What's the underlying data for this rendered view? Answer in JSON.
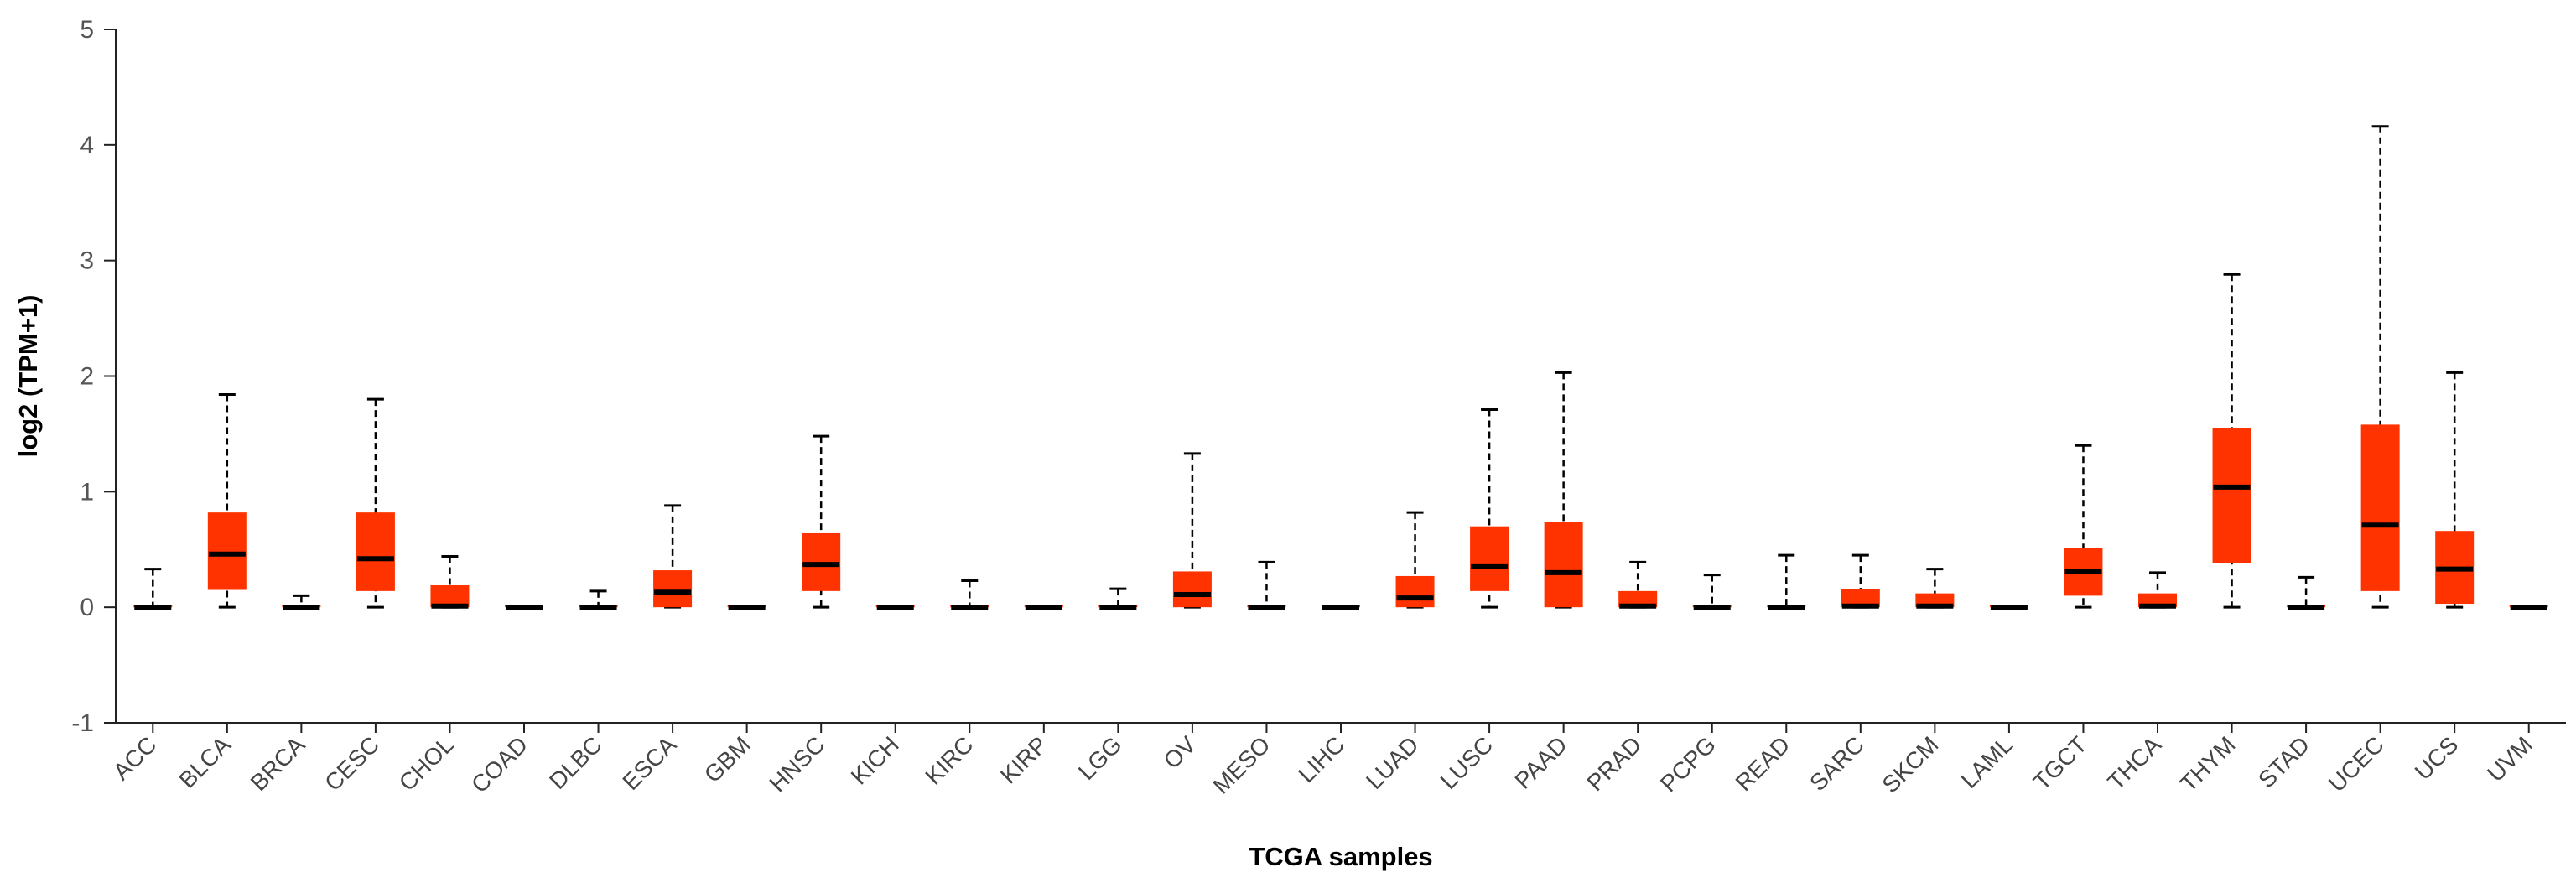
{
  "chart_data": {
    "type": "boxplot",
    "title": "",
    "xlabel": "TCGA samples",
    "ylabel": "log2 (TPM+1)",
    "ylim": [
      -1,
      5
    ],
    "yticks": [
      "5",
      "4",
      "3",
      "2",
      "1",
      "0",
      "-1"
    ],
    "box_color": "#FF3300",
    "categories": [
      "ACC",
      "BLCA",
      "BRCA",
      "CESC",
      "CHOL",
      "COAD",
      "DLBC",
      "ESCA",
      "GBM",
      "HNSC",
      "KICH",
      "KIRC",
      "KIRP",
      "LGG",
      "OV",
      "MESO",
      "LIHC",
      "LUAD",
      "LUSC",
      "PAAD",
      "PRAD",
      "PCPG",
      "READ",
      "SARC",
      "SKCM",
      "LAML",
      "TGCT",
      "THCA",
      "THYM",
      "STAD",
      "UCEC",
      "UCS",
      "UVM"
    ],
    "series": [
      {
        "name": "ACC",
        "min": 0,
        "q1": 0,
        "median": 0,
        "q3": 0.02,
        "max": 0.33
      },
      {
        "name": "BLCA",
        "min": 0,
        "q1": 0.15,
        "median": 0.46,
        "q3": 0.82,
        "max": 1.84
      },
      {
        "name": "BRCA",
        "min": 0,
        "q1": 0,
        "median": 0,
        "q3": 0.02,
        "max": 0.1
      },
      {
        "name": "CESC",
        "min": 0,
        "q1": 0.14,
        "median": 0.42,
        "q3": 0.82,
        "max": 1.8
      },
      {
        "name": "CHOL",
        "min": 0,
        "q1": 0,
        "median": 0.01,
        "q3": 0.19,
        "max": 0.44
      },
      {
        "name": "COAD",
        "min": 0,
        "q1": 0,
        "median": 0,
        "q3": 0.01,
        "max": 0.01
      },
      {
        "name": "DLBC",
        "min": 0,
        "q1": 0,
        "median": 0,
        "q3": 0.02,
        "max": 0.14
      },
      {
        "name": "ESCA",
        "min": 0,
        "q1": 0,
        "median": 0.13,
        "q3": 0.32,
        "max": 0.88
      },
      {
        "name": "GBM",
        "min": 0,
        "q1": 0,
        "median": 0,
        "q3": 0.01,
        "max": 0.01
      },
      {
        "name": "HNSC",
        "min": 0,
        "q1": 0.14,
        "median": 0.37,
        "q3": 0.64,
        "max": 1.48
      },
      {
        "name": "KICH",
        "min": 0,
        "q1": 0,
        "median": 0,
        "q3": 0.01,
        "max": 0.01
      },
      {
        "name": "KIRC",
        "min": 0,
        "q1": 0,
        "median": 0,
        "q3": 0.02,
        "max": 0.23
      },
      {
        "name": "KIRP",
        "min": 0,
        "q1": 0,
        "median": 0,
        "q3": 0.01,
        "max": 0.01
      },
      {
        "name": "LGG",
        "min": 0,
        "q1": 0,
        "median": 0,
        "q3": 0.02,
        "max": 0.16
      },
      {
        "name": "OV",
        "min": 0,
        "q1": 0,
        "median": 0.11,
        "q3": 0.31,
        "max": 1.33
      },
      {
        "name": "MESO",
        "min": 0,
        "q1": 0,
        "median": 0,
        "q3": 0.02,
        "max": 0.39
      },
      {
        "name": "LIHC",
        "min": 0,
        "q1": 0,
        "median": 0,
        "q3": 0.01,
        "max": 0.01
      },
      {
        "name": "LUAD",
        "min": 0,
        "q1": 0,
        "median": 0.08,
        "q3": 0.27,
        "max": 0.82
      },
      {
        "name": "LUSC",
        "min": 0,
        "q1": 0.14,
        "median": 0.35,
        "q3": 0.7,
        "max": 1.71
      },
      {
        "name": "PAAD",
        "min": 0,
        "q1": 0,
        "median": 0.3,
        "q3": 0.74,
        "max": 2.03
      },
      {
        "name": "PRAD",
        "min": 0,
        "q1": 0,
        "median": 0.01,
        "q3": 0.14,
        "max": 0.39
      },
      {
        "name": "PCPG",
        "min": 0,
        "q1": 0,
        "median": 0,
        "q3": 0.02,
        "max": 0.28
      },
      {
        "name": "READ",
        "min": 0,
        "q1": 0,
        "median": 0,
        "q3": 0.02,
        "max": 0.45
      },
      {
        "name": "SARC",
        "min": 0,
        "q1": 0,
        "median": 0.01,
        "q3": 0.16,
        "max": 0.45
      },
      {
        "name": "SKCM",
        "min": 0,
        "q1": 0,
        "median": 0.01,
        "q3": 0.12,
        "max": 0.33
      },
      {
        "name": "LAML",
        "min": 0,
        "q1": 0,
        "median": 0,
        "q3": 0.01,
        "max": 0.01
      },
      {
        "name": "TGCT",
        "min": 0,
        "q1": 0.1,
        "median": 0.31,
        "q3": 0.51,
        "max": 1.4
      },
      {
        "name": "THCA",
        "min": 0,
        "q1": 0,
        "median": 0.01,
        "q3": 0.12,
        "max": 0.3
      },
      {
        "name": "THYM",
        "min": 0,
        "q1": 0.38,
        "median": 1.04,
        "q3": 1.55,
        "max": 2.88
      },
      {
        "name": "STAD",
        "min": 0,
        "q1": 0,
        "median": 0,
        "q3": 0.02,
        "max": 0.26
      },
      {
        "name": "UCEC",
        "min": 0,
        "q1": 0.14,
        "median": 0.71,
        "q3": 1.58,
        "max": 4.16
      },
      {
        "name": "UCS",
        "min": 0,
        "q1": 0.03,
        "median": 0.33,
        "q3": 0.66,
        "max": 2.03
      },
      {
        "name": "UVM",
        "min": 0,
        "q1": 0,
        "median": 0,
        "q3": 0.01,
        "max": 0.01
      }
    ]
  }
}
